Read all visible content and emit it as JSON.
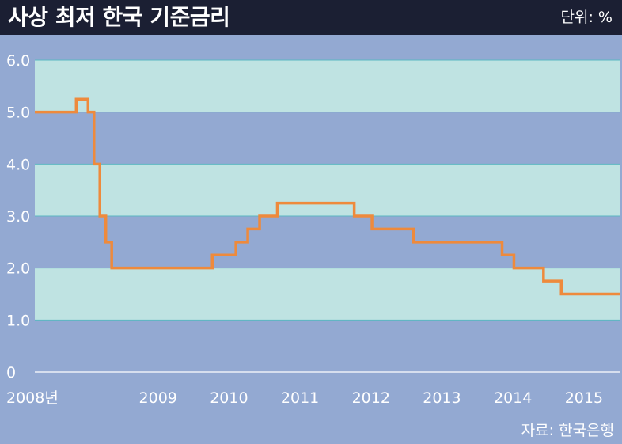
{
  "header": {
    "title": "사상 최저 한국 기준금리",
    "unit": "단위: %"
  },
  "source": "자료: 한국은행",
  "colors": {
    "background": "#93a9d2",
    "band": "#bfe3e2",
    "header": "#1b1f33",
    "line": "#ee8a3c",
    "text": "#ffffff"
  },
  "chart_data": {
    "type": "line",
    "step": true,
    "title": "사상 최저 한국 기준금리",
    "ylabel": "단위: %",
    "ylim": [
      0,
      6.0
    ],
    "yticks": [
      0,
      1.0,
      2.0,
      3.0,
      4.0,
      5.0,
      6.0
    ],
    "ytick_labels": [
      "0",
      "1.0",
      "2.0",
      "3.0",
      "4.0",
      "5.0",
      "6.0"
    ],
    "xlim": [
      "2008-01",
      "2016-04"
    ],
    "xticks": [
      "2008",
      "2009",
      "2010",
      "2011",
      "2012",
      "2013",
      "2014",
      "2015"
    ],
    "xtick_labels": [
      "2008년",
      "2009",
      "2010",
      "2011",
      "2012",
      "2013",
      "2014",
      "2015"
    ],
    "series": [
      {
        "x": [
          "2008-01",
          "2008-08",
          "2008-10",
          "2008-11",
          "2008-12",
          "2009-01",
          "2009-02",
          "2010-07",
          "2010-11",
          "2011-01",
          "2011-03",
          "2011-06",
          "2012-07",
          "2012-10",
          "2013-05",
          "2014-08",
          "2014-10",
          "2015-03",
          "2015-06",
          "2016-04"
        ],
        "y": [
          5.0,
          5.25,
          5.0,
          4.0,
          3.0,
          2.5,
          2.0,
          2.25,
          2.5,
          2.75,
          3.0,
          3.25,
          3.0,
          2.75,
          2.5,
          2.25,
          2.0,
          1.75,
          1.5,
          1.5
        ]
      }
    ],
    "grid": false,
    "legend": "none"
  }
}
